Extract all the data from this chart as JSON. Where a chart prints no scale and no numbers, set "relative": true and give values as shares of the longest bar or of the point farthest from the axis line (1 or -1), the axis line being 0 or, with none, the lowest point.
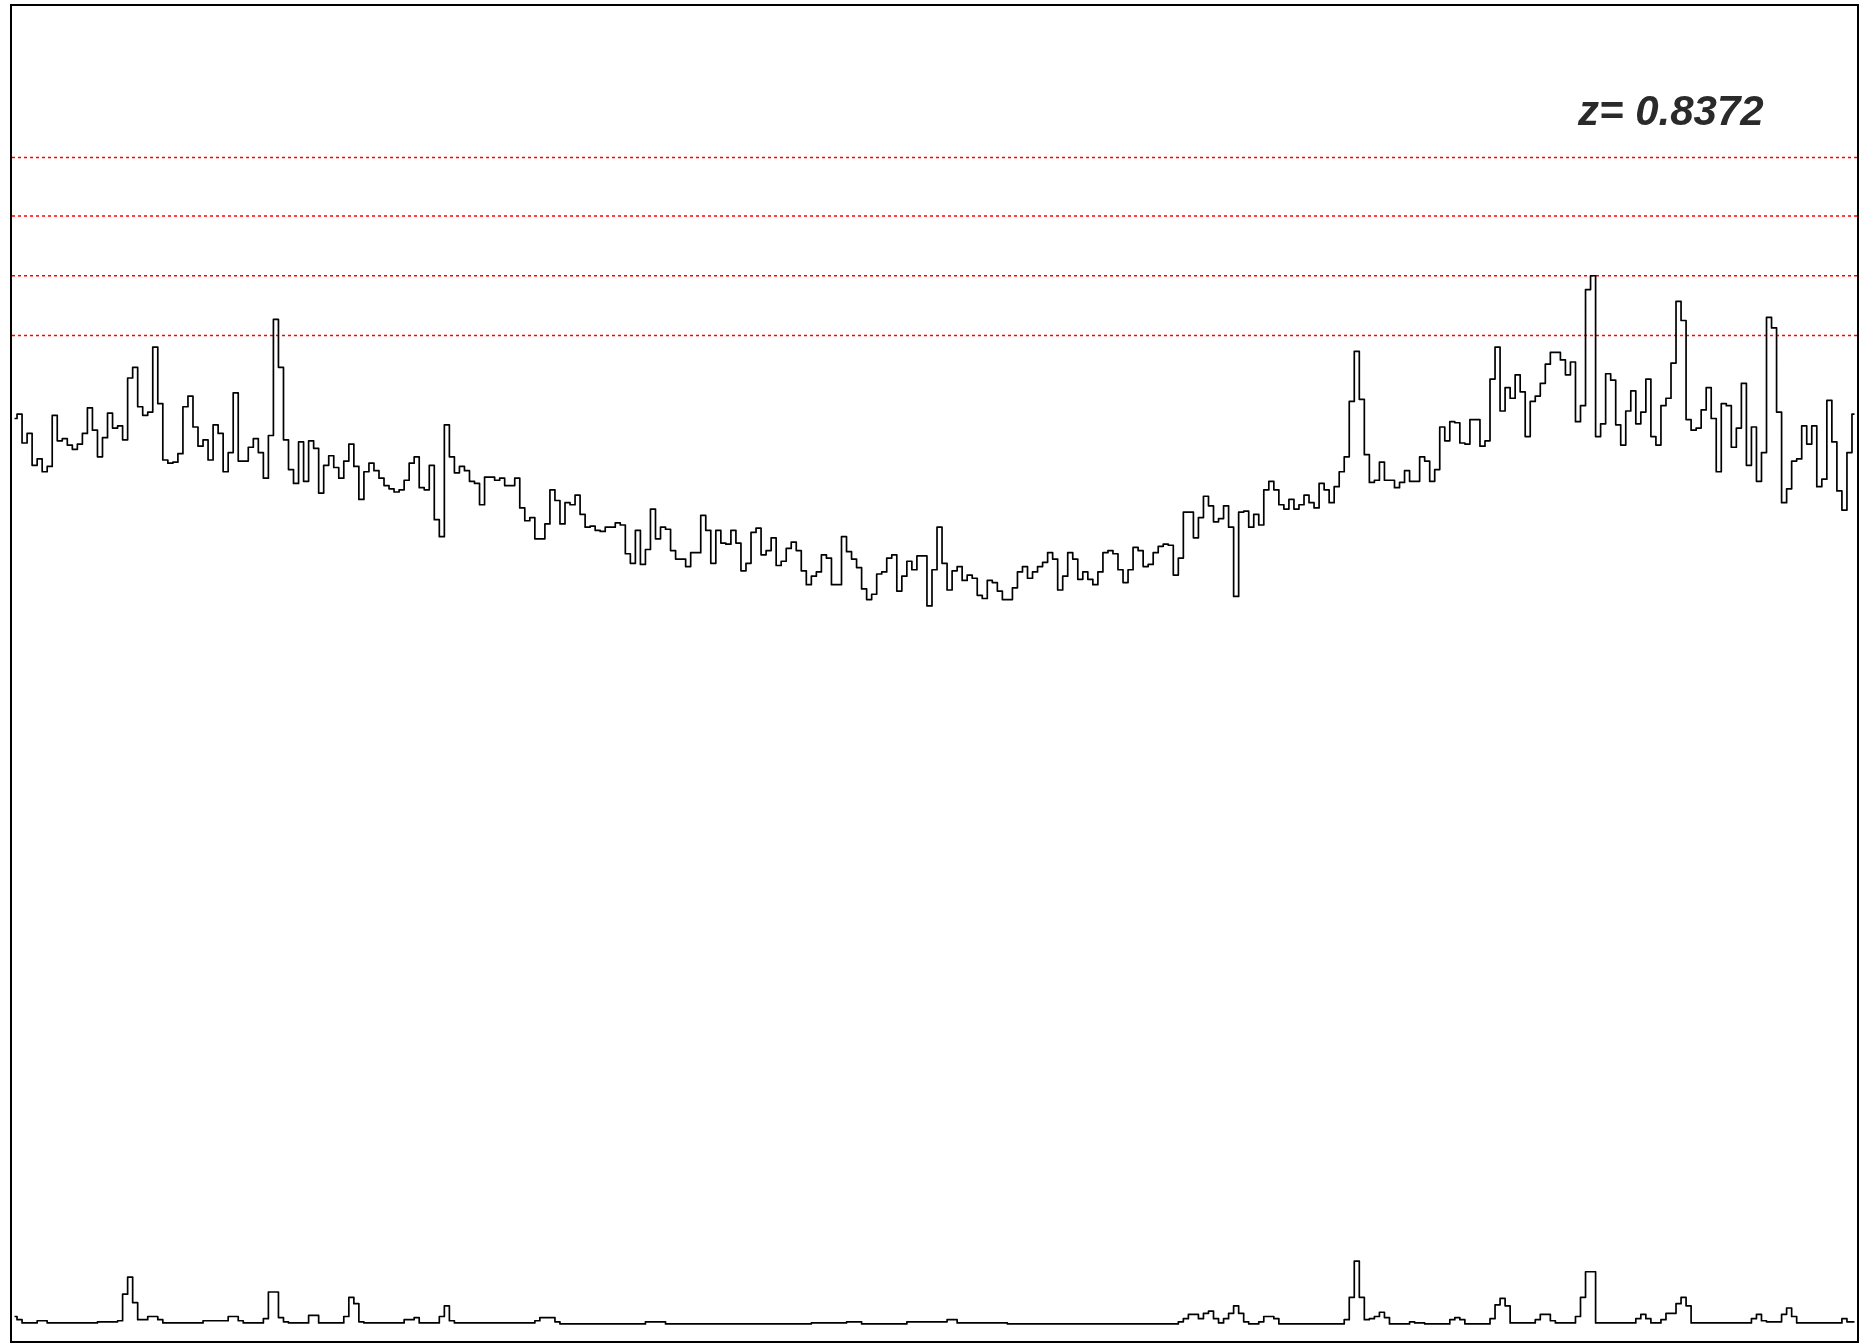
{
  "chart_data": {
    "type": "step",
    "relative": true,
    "tick_labels": false,
    "annotations": [
      "z= 0.8372"
    ],
    "ref_lines": [
      {
        "axis": "y",
        "value": 1.111,
        "color": "#ff0000",
        "line_style": "dotted"
      },
      {
        "axis": "y",
        "value": 1.056,
        "color": "#ff0000",
        "line_style": "dotted"
      },
      {
        "axis": "y",
        "value": 1.0,
        "color": "#ff0000",
        "line_style": "dotted"
      },
      {
        "axis": "y",
        "value": 0.944,
        "color": "#ff0000",
        "line_style": "dotted"
      }
    ],
    "categories": [
      null,
      null,
      null,
      null,
      null,
      null,
      null,
      null,
      null,
      null,
      null,
      null,
      null,
      null,
      null,
      null,
      null,
      null,
      null,
      null,
      null,
      null,
      null,
      null,
      null,
      null,
      null,
      null,
      null,
      null,
      null,
      null,
      null,
      null,
      null,
      null,
      null,
      null,
      null,
      null,
      null,
      null,
      null,
      null,
      null,
      null,
      null,
      null,
      null,
      null,
      null,
      null,
      null,
      null,
      null,
      null,
      null,
      null,
      null,
      null,
      null,
      null,
      null,
      null,
      null,
      null,
      null,
      null,
      null,
      null,
      null,
      null,
      null,
      null,
      null,
      null,
      null,
      null,
      null,
      null,
      null,
      null,
      null,
      null,
      null,
      null,
      null,
      null,
      null,
      null,
      null,
      null,
      null,
      null,
      null,
      null,
      null,
      null,
      null,
      null,
      null,
      null,
      null,
      null,
      null,
      null,
      null,
      null,
      null,
      null,
      null,
      null,
      null,
      null,
      null,
      null,
      null,
      null,
      null,
      null,
      null,
      null,
      null,
      null,
      null,
      null,
      null,
      null,
      null,
      null,
      null,
      null,
      null,
      null,
      null,
      null,
      null,
      null,
      null,
      null,
      null,
      null,
      null,
      null,
      null,
      null,
      null,
      null,
      null,
      null,
      null,
      null,
      null,
      null,
      null,
      null,
      null,
      null,
      null,
      null,
      null,
      null,
      null,
      null,
      null,
      null,
      null,
      null,
      null,
      null,
      null,
      null,
      null,
      null,
      null,
      null,
      null,
      null,
      null,
      null,
      null,
      null,
      null,
      null,
      null,
      null,
      null,
      null,
      null,
      null,
      null,
      null,
      null,
      null,
      null,
      null,
      null,
      null,
      null,
      null,
      null,
      null,
      null,
      null,
      null,
      null,
      null,
      null,
      null,
      null,
      null,
      null,
      null,
      null,
      null,
      null,
      null,
      null,
      null,
      null,
      null,
      null,
      null,
      null,
      null,
      null,
      null,
      null,
      null,
      null,
      null,
      null,
      null,
      null,
      null,
      null,
      null,
      null,
      null,
      null,
      null,
      null,
      null,
      null,
      null,
      null,
      null,
      null,
      null,
      null,
      null,
      null,
      null,
      null,
      null,
      null,
      null,
      null,
      null,
      null,
      null,
      null,
      null,
      null,
      null,
      null,
      null,
      null,
      null,
      null,
      null,
      null,
      null,
      null,
      null,
      null,
      null,
      null,
      null,
      null,
      null,
      null,
      null,
      null,
      null,
      null,
      null,
      null,
      null,
      null,
      null,
      null,
      null,
      null,
      null,
      null,
      null,
      null,
      null,
      null,
      null,
      null,
      null,
      null,
      null,
      null,
      null,
      null,
      null,
      null,
      null,
      null,
      null,
      null,
      null,
      null,
      null,
      null,
      null,
      null,
      null,
      null,
      null,
      null,
      null,
      null,
      null,
      null,
      null,
      null,
      null,
      null,
      null,
      null,
      null,
      null,
      null,
      null,
      null,
      null,
      null,
      null,
      null,
      null,
      null,
      null,
      null,
      null,
      null,
      null,
      null,
      null,
      null,
      null,
      null,
      null,
      null,
      null,
      null,
      null,
      null,
      null,
      null,
      null,
      null,
      null,
      null
    ],
    "series": [
      {
        "color": "#000000",
        "values": [
          0.866,
          0.87,
          0.843,
          0.852,
          0.822,
          0.828,
          0.816,
          0.821,
          0.869,
          0.845,
          0.847,
          0.841,
          0.837,
          0.842,
          0.852,
          0.876,
          0.855,
          0.83,
          0.848,
          0.871,
          0.857,
          0.859,
          0.846,
          0.904,
          0.914,
          0.877,
          0.869,
          0.872,
          0.933,
          0.88,
          0.827,
          0.824,
          0.825,
          0.833,
          0.877,
          0.887,
          0.858,
          0.84,
          0.846,
          0.827,
          0.86,
          0.852,
          0.816,
          0.834,
          0.89,
          0.826,
          0.826,
          0.839,
          0.847,
          0.834,
          0.81,
          0.85,
          0.959,
          0.914,
          0.846,
          0.818,
          0.805,
          0.844,
          0.807,
          0.845,
          0.838,
          0.796,
          0.822,
          0.831,
          0.82,
          0.81,
          0.826,
          0.842,
          0.821,
          0.79,
          0.816,
          0.824,
          0.817,
          0.81,
          0.803,
          0.8,
          0.797,
          0.799,
          0.808,
          0.824,
          0.83,
          0.801,
          0.799,
          0.822,
          0.771,
          0.755,
          0.86,
          0.83,
          0.815,
          0.821,
          0.817,
          0.807,
          0.805,
          0.785,
          0.811,
          0.811,
          0.808,
          0.81,
          0.803,
          0.803,
          0.81,
          0.782,
          0.77,
          0.773,
          0.753,
          0.753,
          0.767,
          0.799,
          0.789,
          0.767,
          0.787,
          0.785,
          0.794,
          0.776,
          0.764,
          0.765,
          0.761,
          0.76,
          0.764,
          0.764,
          0.768,
          0.766,
          0.739,
          0.73,
          0.761,
          0.729,
          0.743,
          0.781,
          0.753,
          0.764,
          0.762,
          0.742,
          0.734,
          0.734,
          0.727,
          0.74,
          0.74,
          0.775,
          0.761,
          0.73,
          0.761,
          0.749,
          0.748,
          0.761,
          0.749,
          0.723,
          0.73,
          0.759,
          0.763,
          0.738,
          0.742,
          0.754,
          0.728,
          0.732,
          0.744,
          0.75,
          0.742,
          0.723,
          0.71,
          0.718,
          0.722,
          0.738,
          0.735,
          0.71,
          0.71,
          0.755,
          0.741,
          0.734,
          0.726,
          0.706,
          0.696,
          0.701,
          0.72,
          0.722,
          0.735,
          0.738,
          0.704,
          0.718,
          0.732,
          0.724,
          0.737,
          0.737,
          0.69,
          0.724,
          0.764,
          0.73,
          0.705,
          0.723,
          0.727,
          0.714,
          0.719,
          0.716,
          0.7,
          0.697,
          0.714,
          0.712,
          0.704,
          0.696,
          0.696,
          0.707,
          0.722,
          0.727,
          0.716,
          0.722,
          0.727,
          0.731,
          0.74,
          0.734,
          0.705,
          0.718,
          0.74,
          0.734,
          0.715,
          0.722,
          0.715,
          0.71,
          0.722,
          0.74,
          0.742,
          0.739,
          0.724,
          0.712,
          0.724,
          0.745,
          0.742,
          0.727,
          0.729,
          0.74,
          0.746,
          0.748,
          0.747,
          0.719,
          0.735,
          0.778,
          0.778,
          0.754,
          0.773,
          0.793,
          0.784,
          0.769,
          0.772,
          0.784,
          0.764,
          0.699,
          0.778,
          0.779,
          0.764,
          0.776,
          0.766,
          0.799,
          0.807,
          0.799,
          0.785,
          0.781,
          0.79,
          0.781,
          0.785,
          0.794,
          0.787,
          0.782,
          0.805,
          0.799,
          0.787,
          0.802,
          0.816,
          0.83,
          0.882,
          0.929,
          0.884,
          0.832,
          0.806,
          0.808,
          0.825,
          0.808,
          0.808,
          0.801,
          0.806,
          0.817,
          0.807,
          0.807,
          0.83,
          0.826,
          0.807,
          0.818,
          0.858,
          0.845,
          0.863,
          0.862,
          0.843,
          0.842,
          0.865,
          0.865,
          0.84,
          0.845,
          0.903,
          0.933,
          0.873,
          0.895,
          0.885,
          0.907,
          0.891,
          0.849,
          0.882,
          0.887,
          0.899,
          0.917,
          0.928,
          0.928,
          0.921,
          0.907,
          0.919,
          0.863,
          0.878,
          0.987,
          1.0,
          0.849,
          0.861,
          0.908,
          0.902,
          0.86,
          0.841,
          0.873,
          0.892,
          0.861,
          0.872,
          0.903,
          0.849,
          0.841,
          0.878,
          0.885,
          0.918,
          0.976,
          0.958,
          0.865,
          0.855,
          0.857,
          0.874,
          0.895,
          0.866,
          0.816,
          0.88,
          0.878,
          0.839,
          0.857,
          0.899,
          0.822,
          0.858,
          0.807,
          0.834,
          0.961,
          0.951,
          0.872,
          0.787,
          0.8,
          0.826,
          0.828,
          0.859,
          0.842,
          0.859,
          0.802,
          0.809,
          0.883,
          0.844,
          0.798,
          0.78,
          0.834,
          0.87
        ]
      },
      {
        "color": "#000000",
        "values": [
          0.023,
          0.02,
          0.017,
          0.017,
          0.017,
          0.019,
          0.019,
          0.017,
          0.017,
          0.017,
          0.017,
          0.017,
          0.017,
          0.017,
          0.017,
          0.017,
          0.017,
          0.018,
          0.018,
          0.018,
          0.018,
          0.019,
          0.044,
          0.06,
          0.036,
          0.02,
          0.02,
          0.023,
          0.023,
          0.02,
          0.017,
          0.017,
          0.017,
          0.017,
          0.017,
          0.017,
          0.017,
          0.017,
          0.019,
          0.019,
          0.019,
          0.019,
          0.019,
          0.023,
          0.023,
          0.019,
          0.017,
          0.017,
          0.017,
          0.017,
          0.021,
          0.046,
          0.046,
          0.022,
          0.018,
          0.017,
          0.017,
          0.017,
          0.017,
          0.024,
          0.024,
          0.017,
          0.017,
          0.017,
          0.017,
          0.017,
          0.023,
          0.041,
          0.035,
          0.018,
          0.017,
          0.017,
          0.017,
          0.017,
          0.017,
          0.017,
          0.017,
          0.017,
          0.02,
          0.02,
          0.022,
          0.017,
          0.017,
          0.017,
          0.017,
          0.023,
          0.033,
          0.019,
          0.017,
          0.017,
          0.017,
          0.017,
          0.017,
          0.017,
          0.017,
          0.017,
          0.017,
          0.017,
          0.017,
          0.017,
          0.017,
          0.017,
          0.017,
          0.017,
          0.019,
          0.022,
          0.022,
          0.022,
          0.018,
          0.016,
          0.016,
          0.016,
          0.016,
          0.016,
          0.016,
          0.016,
          0.016,
          0.016,
          0.016,
          0.016,
          0.016,
          0.016,
          0.016,
          0.016,
          0.016,
          0.016,
          0.018,
          0.018,
          0.018,
          0.018,
          0.016,
          0.016,
          0.016,
          0.016,
          0.016,
          0.016,
          0.016,
          0.016,
          0.016,
          0.016,
          0.016,
          0.016,
          0.016,
          0.016,
          0.016,
          0.016,
          0.016,
          0.016,
          0.016,
          0.016,
          0.016,
          0.016,
          0.016,
          0.016,
          0.016,
          0.016,
          0.016,
          0.016,
          0.016,
          0.017,
          0.017,
          0.017,
          0.017,
          0.017,
          0.017,
          0.017,
          0.018,
          0.018,
          0.018,
          0.016,
          0.016,
          0.016,
          0.016,
          0.016,
          0.016,
          0.016,
          0.016,
          0.016,
          0.018,
          0.018,
          0.018,
          0.018,
          0.018,
          0.018,
          0.018,
          0.018,
          0.02,
          0.02,
          0.017,
          0.017,
          0.017,
          0.017,
          0.017,
          0.017,
          0.017,
          0.017,
          0.017,
          0.017,
          0.016,
          0.016,
          0.016,
          0.016,
          0.016,
          0.016,
          0.016,
          0.016,
          0.016,
          0.016,
          0.016,
          0.016,
          0.016,
          0.016,
          0.016,
          0.016,
          0.016,
          0.016,
          0.016,
          0.016,
          0.016,
          0.016,
          0.016,
          0.016,
          0.016,
          0.016,
          0.016,
          0.016,
          0.016,
          0.016,
          0.016,
          0.016,
          0.016,
          0.016,
          0.018,
          0.021,
          0.025,
          0.025,
          0.021,
          0.026,
          0.028,
          0.021,
          0.017,
          0.021,
          0.026,
          0.033,
          0.026,
          0.018,
          0.016,
          0.016,
          0.018,
          0.023,
          0.023,
          0.021,
          0.016,
          0.016,
          0.016,
          0.016,
          0.016,
          0.016,
          0.016,
          0.016,
          0.016,
          0.016,
          0.016,
          0.016,
          0.016,
          0.02,
          0.041,
          0.075,
          0.041,
          0.02,
          0.021,
          0.023,
          0.027,
          0.022,
          0.016,
          0.016,
          0.016,
          0.016,
          0.018,
          0.017,
          0.017,
          0.016,
          0.016,
          0.016,
          0.016,
          0.016,
          0.02,
          0.022,
          0.02,
          0.016,
          0.016,
          0.016,
          0.016,
          0.016,
          0.021,
          0.034,
          0.04,
          0.033,
          0.017,
          0.017,
          0.017,
          0.017,
          0.017,
          0.02,
          0.025,
          0.025,
          0.019,
          0.017,
          0.017,
          0.017,
          0.017,
          0.023,
          0.041,
          0.065,
          0.065,
          0.017,
          0.017,
          0.017,
          0.017,
          0.017,
          0.017,
          0.017,
          0.017,
          0.021,
          0.025,
          0.021,
          0.017,
          0.017,
          0.02,
          0.026,
          0.026,
          0.035,
          0.041,
          0.033,
          0.017,
          0.017,
          0.017,
          0.017,
          0.017,
          0.017,
          0.017,
          0.017,
          0.017,
          0.017,
          0.017,
          0.017,
          0.021,
          0.025,
          0.019,
          0.018,
          0.018,
          0.018,
          0.025,
          0.031,
          0.023,
          0.017,
          0.017,
          0.017,
          0.017,
          0.017,
          0.017,
          0.017,
          0.017,
          0.017,
          0.021,
          0.018,
          0.018
        ]
      }
    ]
  }
}
